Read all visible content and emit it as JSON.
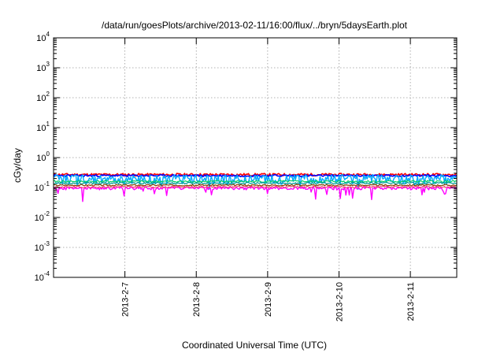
{
  "chart_data": {
    "type": "line",
    "title": "/data/run/goesPlots/archive/2013-02-11/16:00/flux/../bryn/5daysEarth.plot",
    "xlabel": "Coordinated Universal Time (UTC)",
    "ylabel": "cGy/day",
    "yscale": "log",
    "ylim": [
      0.0001,
      10000
    ],
    "xlim": [
      0,
      5.65
    ],
    "grid": true,
    "y_ticks": [
      {
        "value": 0.0001,
        "base": "10",
        "exp": "-4"
      },
      {
        "value": 0.001,
        "base": "10",
        "exp": "-3"
      },
      {
        "value": 0.01,
        "base": "10",
        "exp": "-2"
      },
      {
        "value": 0.1,
        "base": "10",
        "exp": "-1"
      },
      {
        "value": 1,
        "base": "10",
        "exp": "0"
      },
      {
        "value": 10,
        "base": "10",
        "exp": "1"
      },
      {
        "value": 100,
        "base": "10",
        "exp": "2"
      },
      {
        "value": 1000,
        "base": "10",
        "exp": "3"
      },
      {
        "value": 10000,
        "base": "10",
        "exp": "4"
      }
    ],
    "x_ticks": [
      {
        "value": 1,
        "label": "2013-2-7"
      },
      {
        "value": 2,
        "label": "2013-2-8"
      },
      {
        "value": 3,
        "label": "2013-2-9"
      },
      {
        "value": 4,
        "label": "2013-2-10"
      },
      {
        "value": 5,
        "label": "2013-2-11"
      }
    ],
    "series": [
      {
        "color": "#ff0000",
        "base": 0.27,
        "noise": 0.1,
        "spike_down": 0.0,
        "width": 1.6,
        "seed": 11
      },
      {
        "color": "#0000ff",
        "base": 0.25,
        "noise": 0.08,
        "spike_down": 0.0,
        "width": 1.6,
        "seed": 23
      },
      {
        "color": "#00aaff",
        "base": 0.2,
        "noise": 0.35,
        "spike_down": 0.35,
        "width": 1.4,
        "seed": 37
      },
      {
        "color": "#00cc66",
        "base": 0.16,
        "noise": 0.08,
        "spike_down": 0.0,
        "width": 1.2,
        "seed": 41
      },
      {
        "color": "#009999",
        "base": 0.14,
        "noise": 0.07,
        "spike_down": 0.0,
        "width": 1.2,
        "seed": 53
      },
      {
        "color": "#804000",
        "base": 0.12,
        "noise": 0.06,
        "spike_down": 0.0,
        "width": 1.2,
        "seed": 67
      },
      {
        "color": "#ff00ff",
        "base": 0.095,
        "noise": 0.12,
        "spike_down": 0.45,
        "width": 1.4,
        "seed": 79
      },
      {
        "color": "#ff3366",
        "base": 0.105,
        "noise": 0.07,
        "spike_down": 0.0,
        "width": 1.0,
        "seed": 83
      }
    ]
  }
}
